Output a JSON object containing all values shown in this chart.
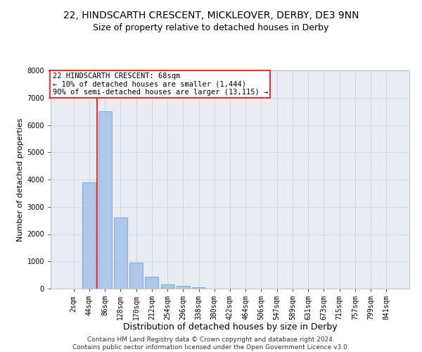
{
  "title": "22, HINDSCARTH CRESCENT, MICKLEOVER, DERBY, DE3 9NN",
  "subtitle": "Size of property relative to detached houses in Derby",
  "xlabel": "Distribution of detached houses by size in Derby",
  "ylabel": "Number of detached properties",
  "bar_labels": [
    "2sqm",
    "44sqm",
    "86sqm",
    "128sqm",
    "170sqm",
    "212sqm",
    "254sqm",
    "296sqm",
    "338sqm",
    "380sqm",
    "422sqm",
    "464sqm",
    "506sqm",
    "547sqm",
    "589sqm",
    "631sqm",
    "673sqm",
    "715sqm",
    "757sqm",
    "799sqm",
    "841sqm"
  ],
  "bar_values": [
    10,
    3900,
    6500,
    2600,
    950,
    430,
    150,
    100,
    60,
    10,
    5,
    0,
    0,
    0,
    0,
    0,
    0,
    0,
    0,
    0,
    0
  ],
  "bar_color": "#aec6e8",
  "bar_edge_color": "#5b9bd5",
  "grid_color": "#d0d8e8",
  "background_color": "#e8edf5",
  "annotation_line1": "22 HINDSCARTH CRESCENT: 68sqm",
  "annotation_line2": "← 10% of detached houses are smaller (1,444)",
  "annotation_line3": "90% of semi-detached houses are larger (13,115) →",
  "annotation_box_color": "white",
  "annotation_box_edge_color": "red",
  "vline_color": "red",
  "vline_position": 1.5,
  "ylim": [
    0,
    8000
  ],
  "yticks": [
    0,
    1000,
    2000,
    3000,
    4000,
    5000,
    6000,
    7000,
    8000
  ],
  "footer_line1": "Contains HM Land Registry data © Crown copyright and database right 2024.",
  "footer_line2": "Contains public sector information licensed under the Open Government Licence v3.0.",
  "title_fontsize": 10,
  "subtitle_fontsize": 9,
  "xlabel_fontsize": 9,
  "ylabel_fontsize": 8,
  "tick_fontsize": 7,
  "annotation_fontsize": 7.5,
  "footer_fontsize": 6.5
}
